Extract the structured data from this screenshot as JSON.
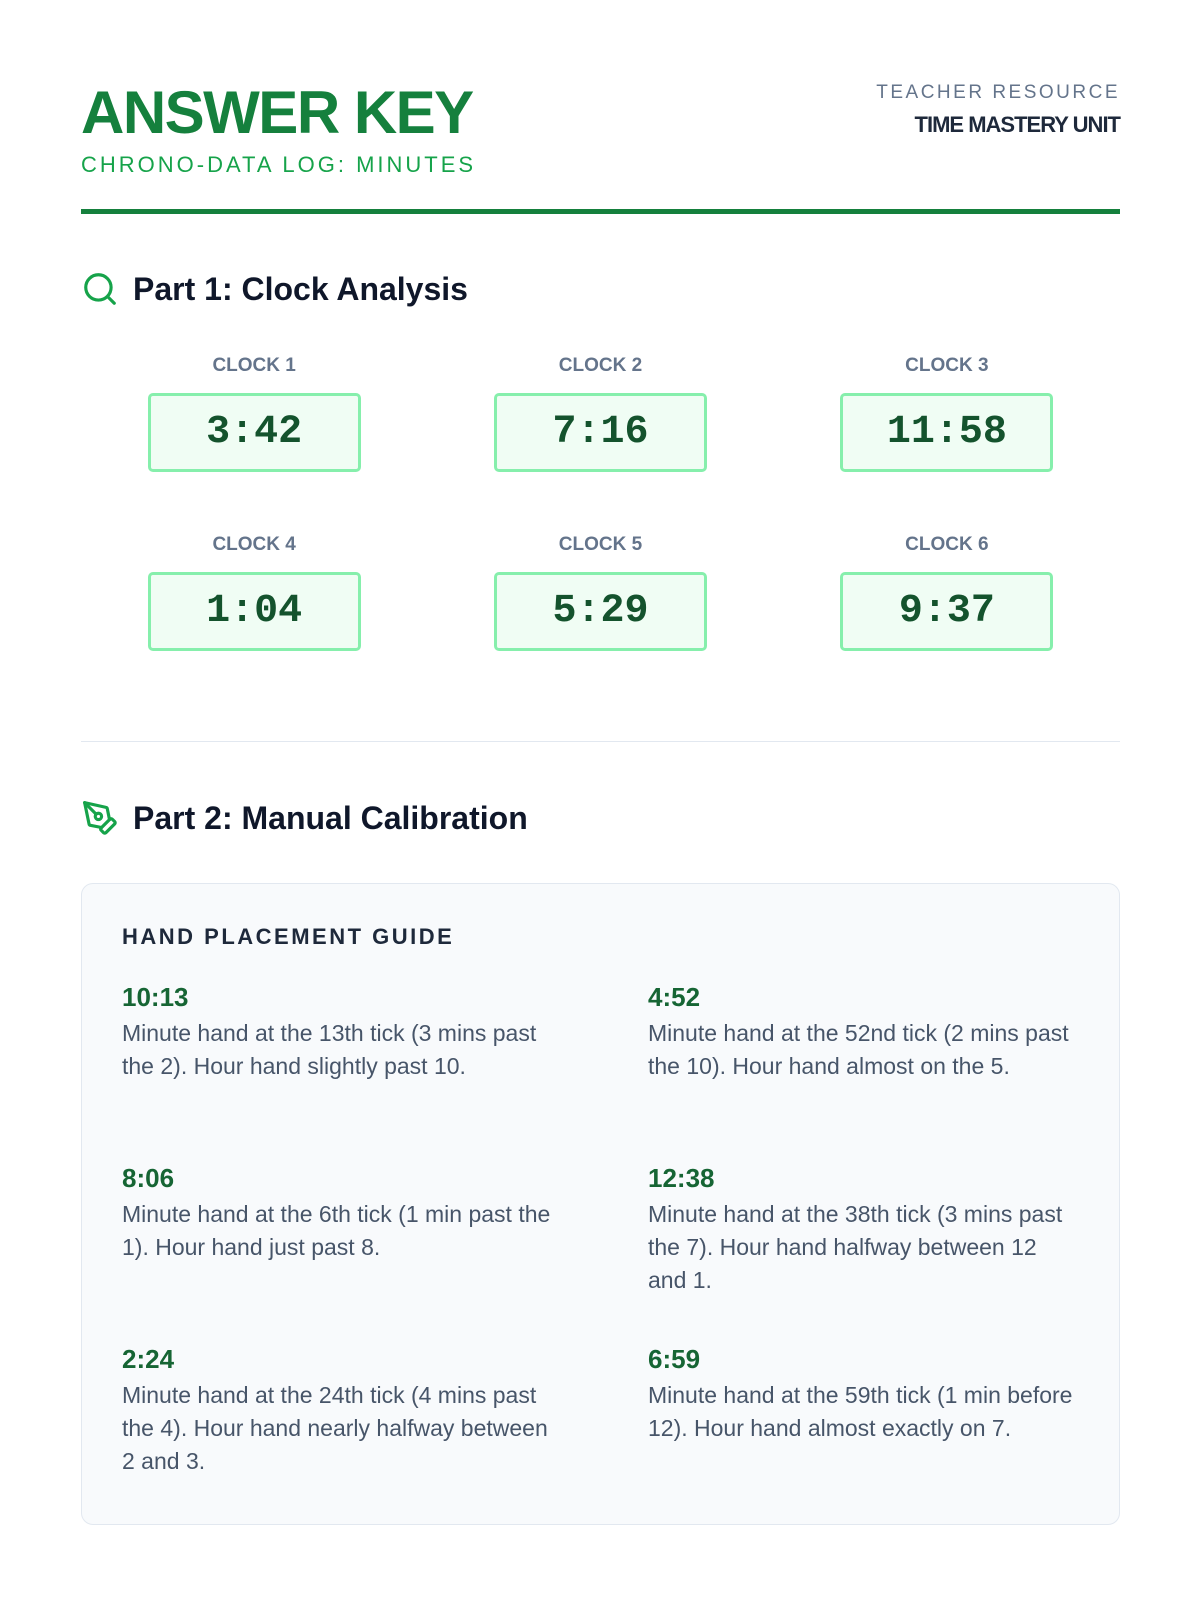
{
  "header": {
    "title": "ANSWER KEY",
    "subtitle": "CHRONO-DATA LOG: MINUTES",
    "resource": "TEACHER RESOURCE",
    "unit": "TIME MASTERY UNIT"
  },
  "part1": {
    "heading": "Part 1: Clock Analysis",
    "icon": "search-icon",
    "clocks": [
      {
        "label": "CLOCK 1",
        "time": "3:42"
      },
      {
        "label": "CLOCK 2",
        "time": "7:16"
      },
      {
        "label": "CLOCK 3",
        "time": "11:58"
      },
      {
        "label": "CLOCK 4",
        "time": "1:04"
      },
      {
        "label": "CLOCK 5",
        "time": "5:29"
      },
      {
        "label": "CLOCK 6",
        "time": "9:37"
      }
    ]
  },
  "part2": {
    "heading": "Part 2: Manual Calibration",
    "icon": "pen-tool-icon",
    "guide_title": "HAND PLACEMENT GUIDE",
    "entries": [
      {
        "time": "10:13",
        "text": "Minute hand at the 13th tick (3 mins past the 2). Hour hand slightly past 10."
      },
      {
        "time": "4:52",
        "text": "Minute hand at the 52nd tick (2 mins past the 10). Hour hand almost on the 5."
      },
      {
        "time": "8:06",
        "text": "Minute hand at the 6th tick (1 min past the 1). Hour hand just past 8."
      },
      {
        "time": "12:38",
        "text": "Minute hand at the 38th tick (3 mins past the 7). Hour hand halfway between 12 and 1."
      },
      {
        "time": "2:24",
        "text": "Minute hand at the 24th tick (4 mins past the 4). Hour hand nearly halfway between 2 and 3."
      },
      {
        "time": "6:59",
        "text": "Minute hand at the 59th tick (1 min before 12). Hour hand almost exactly on 7."
      }
    ]
  },
  "colors": {
    "primary": "#15803d",
    "accent": "#16a34a",
    "box_border": "#86efac",
    "box_bg": "#f0fdf4"
  }
}
